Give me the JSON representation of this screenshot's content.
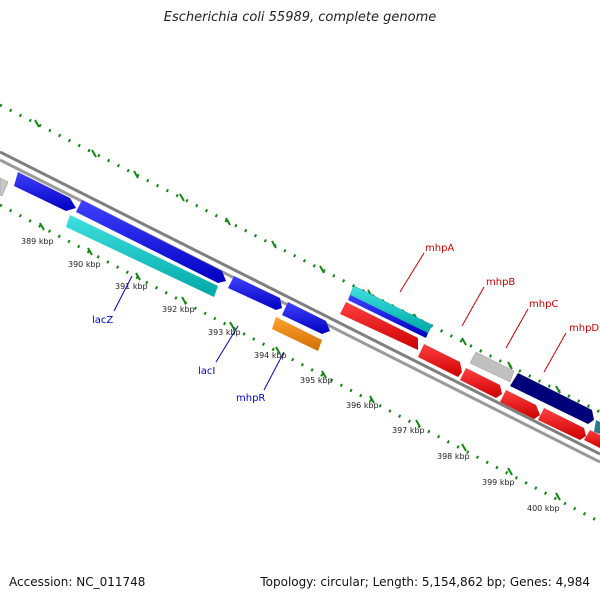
{
  "title": "Escherichia coli 55989, complete genome",
  "footer": {
    "accession": "Accession: NC_011748",
    "summary": "Topology: circular; Length: 5,154,862 bp; Genes: 4,984"
  },
  "ticks": [
    "389 kbp",
    "390 kbp",
    "391 kbp",
    "392 kbp",
    "393 kbp",
    "394 kbp",
    "395 kbp",
    "396 kbp",
    "397 kbp",
    "398 kbp",
    "399 kbp",
    "400 kbp"
  ],
  "gene_labels": {
    "lacZ": "lacZ",
    "lacI": "lacI",
    "mhpR": "mhpR",
    "mhpA": "mhpA",
    "mhpB": "mhpB",
    "mhpC": "mhpC",
    "mhpD": "mhpD"
  },
  "colors": {
    "forward_label": "#0000cc",
    "reverse_label": "#cc0000",
    "tick_green": "#118811",
    "backbone": "#7f7f7f",
    "gene_blue": "#0000ee",
    "gene_cyan": "#00c8c8",
    "gene_orange": "#ff8c00",
    "gene_red": "#ff0000",
    "gene_gray": "#c0c0c0",
    "gene_navy": "#000080"
  }
}
